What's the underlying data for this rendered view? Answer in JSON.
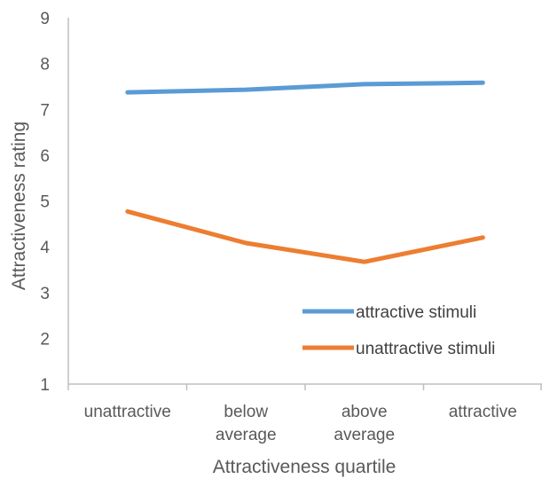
{
  "chart_data": {
    "type": "line",
    "title": "",
    "xlabel": "Attractiveness quartile",
    "ylabel": "Attractiveness rating",
    "ylim": [
      1,
      9
    ],
    "yticks": [
      1,
      2,
      3,
      4,
      5,
      6,
      7,
      8,
      9
    ],
    "grid": false,
    "legend_position": "bottom-right",
    "categories": [
      [
        "unattractive"
      ],
      [
        "below",
        "average"
      ],
      [
        "above",
        "average"
      ],
      [
        "attractive"
      ]
    ],
    "series": [
      {
        "name": "attractive stimuli",
        "color": "#5B9BD5",
        "values": [
          7.37,
          7.43,
          7.55,
          7.58
        ]
      },
      {
        "name": "unattractive stimuli",
        "color": "#ED7D31",
        "values": [
          4.77,
          4.08,
          3.67,
          4.2
        ]
      }
    ]
  }
}
